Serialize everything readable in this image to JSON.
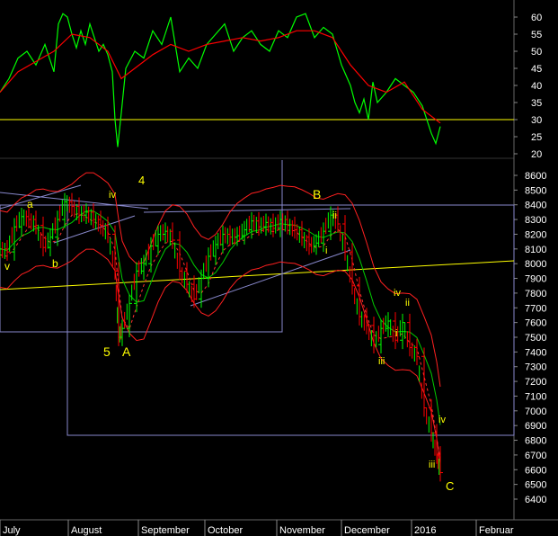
{
  "chart_data": [
    {
      "type": "line",
      "panel": "oscillator",
      "ylim": [
        18,
        65
      ],
      "yticks": [
        20,
        25,
        30,
        35,
        40,
        45,
        50,
        55,
        60
      ],
      "reference_level": 30,
      "series": [
        {
          "color": "#00ff00",
          "x": [
            0,
            10,
            20,
            30,
            40,
            50,
            60,
            65,
            70,
            75,
            80,
            85,
            90,
            95,
            100,
            105,
            110,
            115,
            120,
            125,
            128,
            131,
            135,
            140,
            150,
            160,
            170,
            180,
            190,
            200,
            210,
            220,
            230,
            240,
            250,
            260,
            270,
            280,
            290,
            300,
            310,
            320,
            330,
            340,
            350,
            360,
            370,
            380,
            390,
            395,
            400,
            405,
            410,
            415,
            420,
            430,
            440,
            450,
            460,
            470,
            480,
            485,
            490
          ],
          "values": [
            38,
            42,
            48,
            50,
            46,
            52,
            44,
            58,
            61,
            60,
            55,
            51,
            56,
            52,
            58,
            54,
            50,
            52,
            49,
            44,
            30,
            22,
            32,
            45,
            50,
            48,
            56,
            52,
            60,
            44,
            48,
            45,
            52,
            55,
            58,
            50,
            54,
            56,
            52,
            50,
            56,
            54,
            60,
            61,
            54,
            57,
            55,
            46,
            40,
            35,
            32,
            36,
            30,
            41,
            35,
            38,
            42,
            40,
            38,
            34,
            26,
            23,
            28
          ]
        },
        {
          "color": "#ff0000",
          "x": [
            0,
            20,
            40,
            60,
            80,
            100,
            120,
            135,
            150,
            170,
            190,
            210,
            230,
            250,
            270,
            290,
            310,
            330,
            350,
            370,
            390,
            410,
            430,
            450,
            470,
            490
          ],
          "values": [
            38,
            44,
            47,
            50,
            55,
            54,
            50,
            42,
            45,
            49,
            52,
            50,
            52,
            53,
            54,
            53,
            54,
            56,
            56,
            54,
            46,
            40,
            38,
            41,
            33,
            29
          ]
        }
      ]
    },
    {
      "type": "candlestick",
      "panel": "price",
      "ylim": [
        6220,
        8800
      ],
      "yticks": [
        6400,
        6500,
        6600,
        6700,
        6800,
        6900,
        7000,
        7100,
        7200,
        7300,
        7400,
        7500,
        7600,
        7700,
        7800,
        7900,
        8000,
        8100,
        8200,
        8300,
        8400,
        8500,
        8600
      ],
      "x_ticks": [
        "July",
        "August",
        "September",
        "October",
        "November",
        "December",
        "2016",
        "Februar"
      ],
      "price_series": {
        "x": [
          0,
          8,
          16,
          24,
          32,
          40,
          48,
          56,
          64,
          72,
          80,
          88,
          96,
          104,
          112,
          120,
          128,
          132,
          136,
          144,
          152,
          160,
          168,
          176,
          184,
          192,
          200,
          208,
          216,
          224,
          232,
          240,
          248,
          256,
          264,
          272,
          280,
          288,
          296,
          304,
          312,
          320,
          328,
          336,
          344,
          352,
          360,
          368,
          376,
          384,
          392,
          400,
          408,
          416,
          424,
          432,
          440,
          448,
          456,
          464,
          472,
          480,
          486,
          490
        ],
        "values": [
          8100,
          8080,
          8250,
          8320,
          8300,
          8260,
          8110,
          8180,
          8300,
          8420,
          8390,
          8330,
          8350,
          8300,
          8260,
          8200,
          7950,
          7500,
          7560,
          7730,
          7950,
          8000,
          8120,
          8200,
          8220,
          8160,
          7950,
          7860,
          7760,
          7900,
          8050,
          8130,
          8200,
          8180,
          8190,
          8230,
          8290,
          8250,
          8280,
          8240,
          8300,
          8260,
          8230,
          8180,
          8120,
          8140,
          8220,
          8330,
          8270,
          8080,
          7850,
          7640,
          7580,
          7450,
          7560,
          7610,
          7480,
          7600,
          7430,
          7370,
          7020,
          6850,
          6700,
          6580
        ]
      },
      "wave_labels": [
        "a",
        "v",
        "b",
        "iv",
        "4",
        "5",
        "A",
        "B",
        "ii",
        "i",
        "iv",
        "ii",
        "i",
        "iii",
        "iv",
        "iii",
        "C"
      ]
    }
  ]
}
